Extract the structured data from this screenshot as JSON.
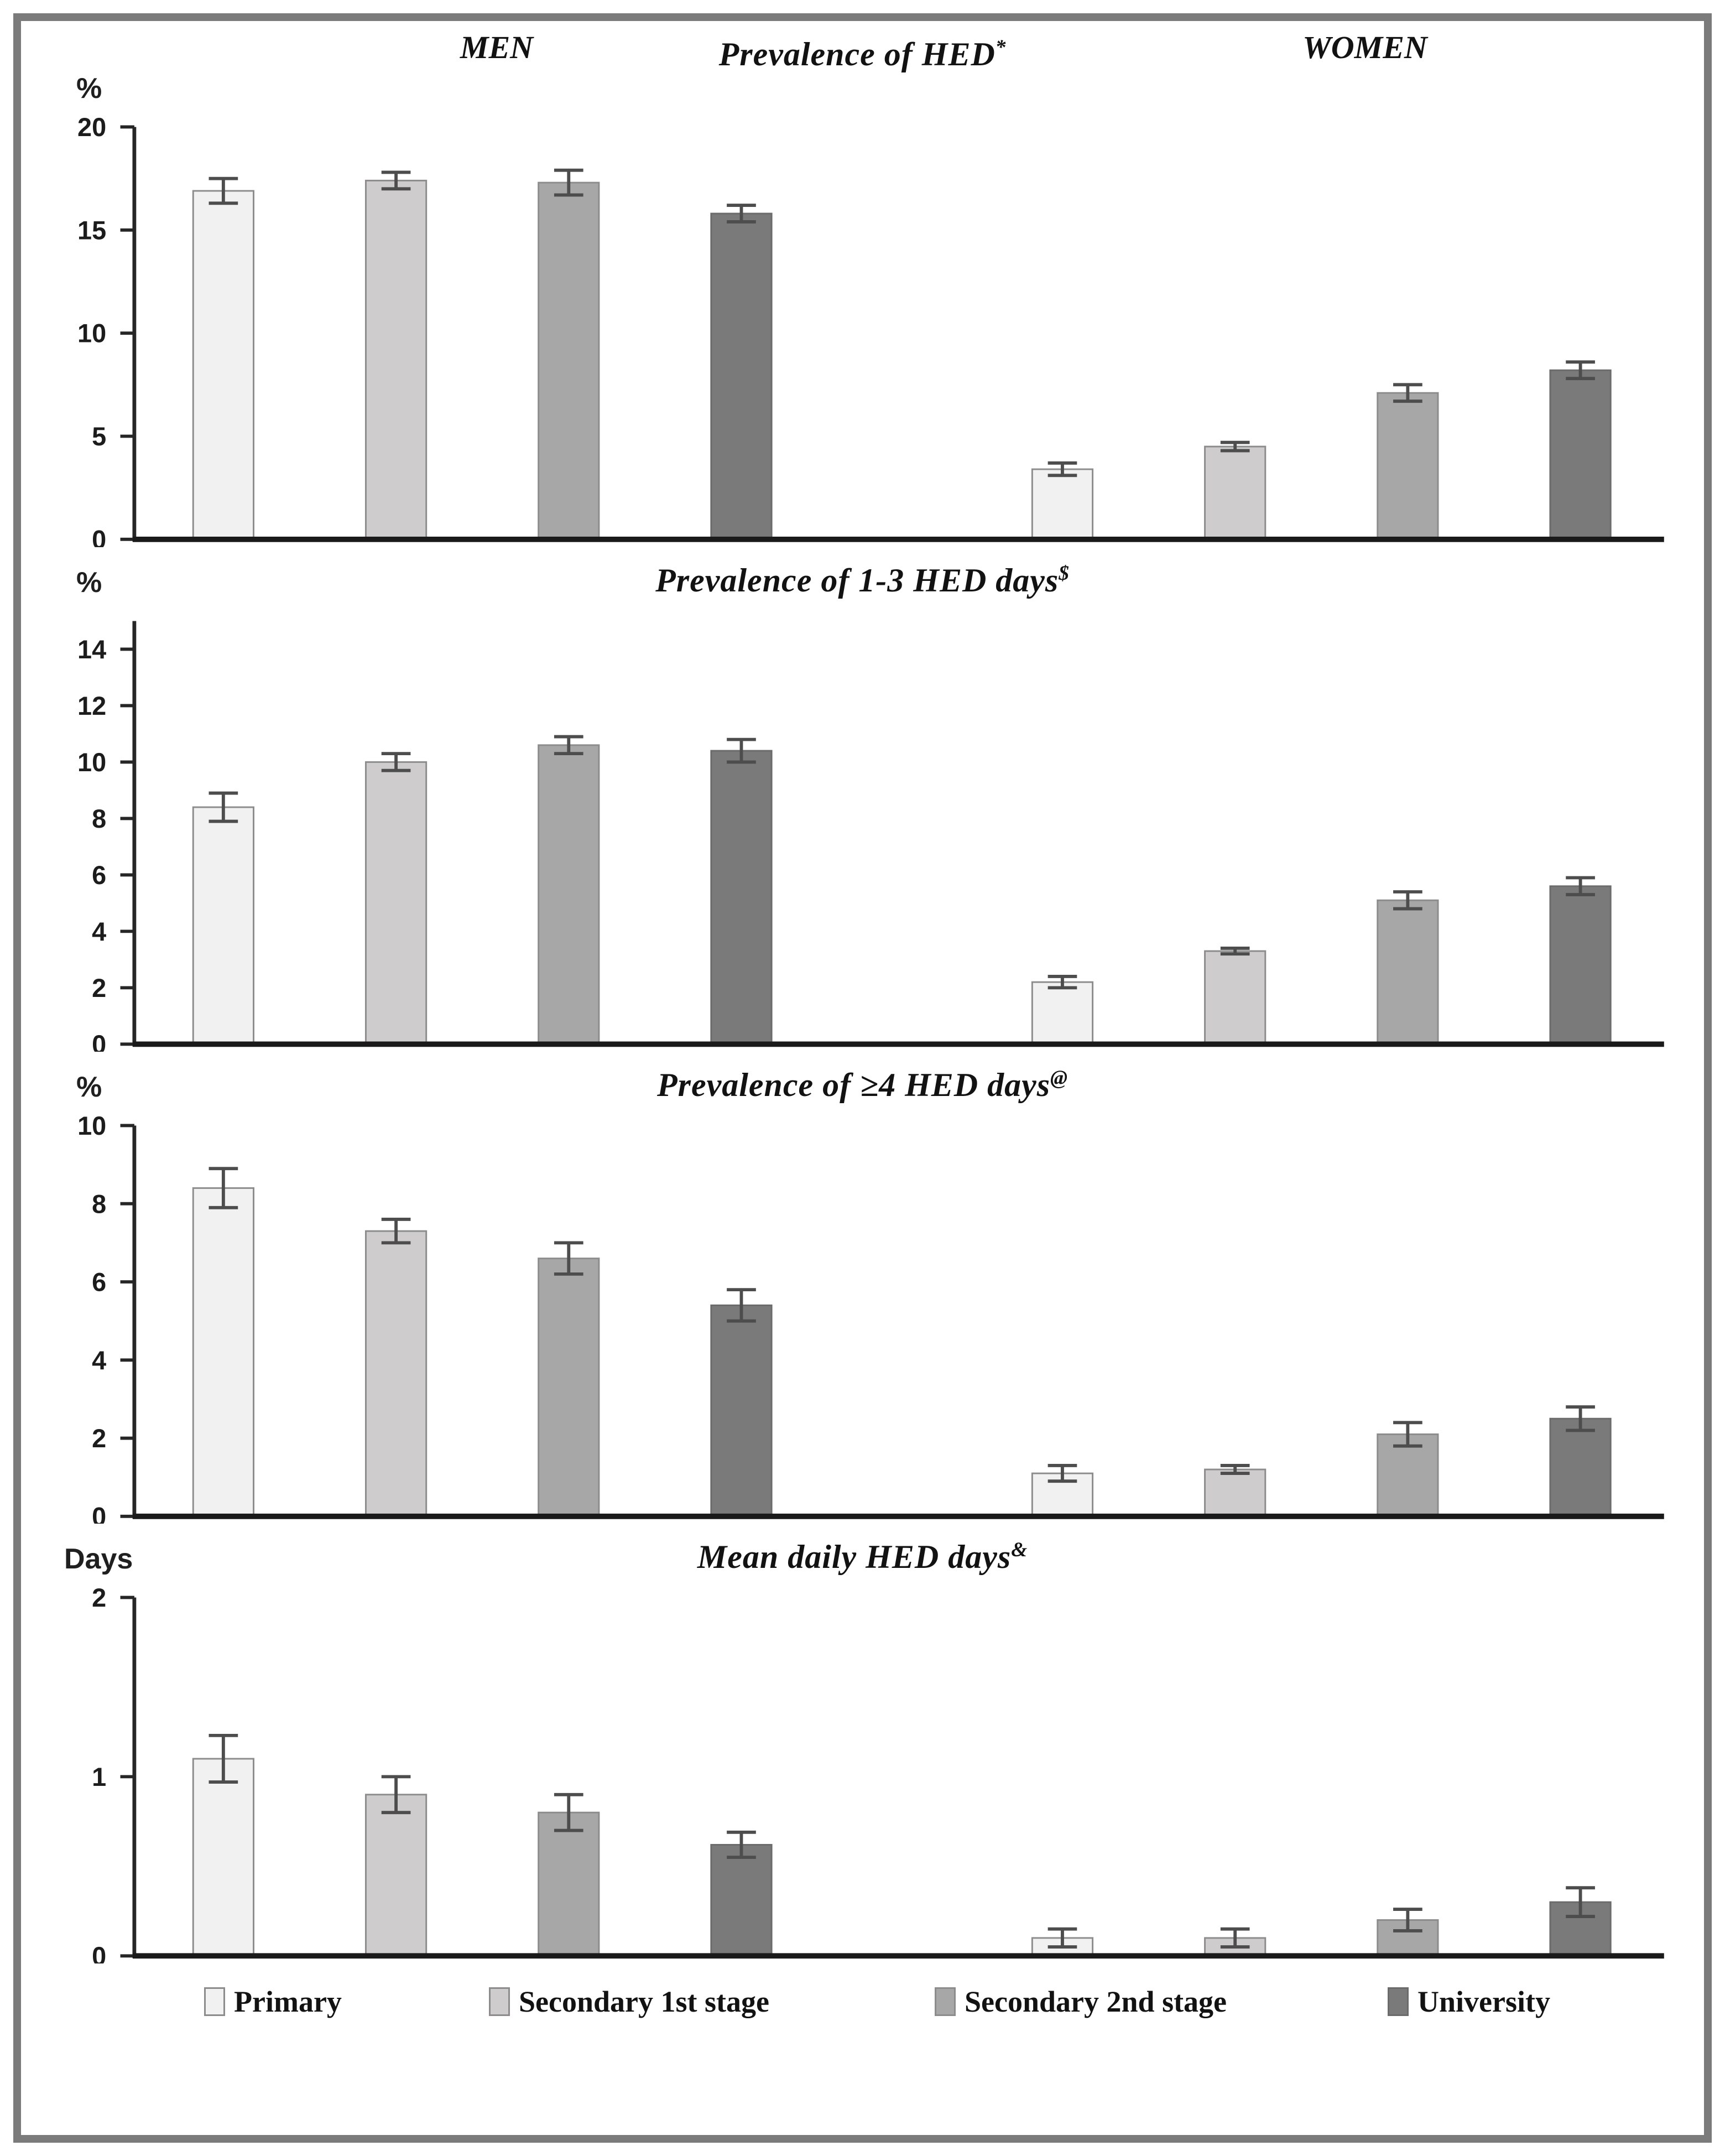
{
  "figure": {
    "men_header": "MEN",
    "women_header": "WOMEN",
    "frame_color": "#7b7b7b",
    "axis_color": "#262626",
    "error_bar_color": "#4d4d4d"
  },
  "legend": {
    "items": [
      {
        "label": "Primary",
        "color": "#f2f1f1",
        "border": "#8c8c8c"
      },
      {
        "label": "Secondary 1st stage",
        "color": "#cecccd",
        "border": "#8c8c8c"
      },
      {
        "label": "Secondary 2nd stage",
        "color": "#a8a7a7",
        "border": "#8c8c8c"
      },
      {
        "label": "University",
        "color": "#7b7a7a",
        "border": "#6b6b6b"
      }
    ]
  },
  "chart_data": [
    {
      "type": "bar",
      "title": {
        "main": "Prevalence of HED",
        "sup": "*"
      },
      "unit": "%",
      "ylabel": "%",
      "ylim": [
        0,
        20
      ],
      "yticks": [
        0,
        5,
        10,
        15,
        20
      ],
      "axis_top": 20,
      "grid": false,
      "categories": [
        "Primary",
        "Secondary 1st stage",
        "Secondary 2nd stage",
        "University"
      ],
      "series": [
        {
          "name": "MEN",
          "values": [
            16.9,
            17.4,
            17.3,
            15.8
          ],
          "errors": [
            0.6,
            0.4,
            0.6,
            0.4
          ]
        },
        {
          "name": "WOMEN",
          "values": [
            3.4,
            4.5,
            7.1,
            8.2
          ],
          "errors": [
            0.3,
            0.2,
            0.4,
            0.4
          ]
        }
      ]
    },
    {
      "type": "bar",
      "title": {
        "main": "Prevalence of 1-3 HED days",
        "sup": "$"
      },
      "unit": "%",
      "ylabel": "%",
      "ylim": [
        0,
        15
      ],
      "yticks": [
        0,
        2,
        4,
        6,
        8,
        10,
        12,
        14
      ],
      "axis_top": 15,
      "grid": false,
      "categories": [
        "Primary",
        "Secondary 1st stage",
        "Secondary 2nd stage",
        "University"
      ],
      "series": [
        {
          "name": "MEN",
          "values": [
            8.4,
            10.0,
            10.6,
            10.4
          ],
          "errors": [
            0.5,
            0.3,
            0.3,
            0.4
          ]
        },
        {
          "name": "WOMEN",
          "values": [
            2.2,
            3.3,
            5.1,
            5.6
          ],
          "errors": [
            0.2,
            0.1,
            0.3,
            0.3
          ]
        }
      ]
    },
    {
      "type": "bar",
      "title": {
        "main": "Prevalence of ≥4 HED days",
        "sup": "@"
      },
      "unit": "%",
      "ylabel": "%",
      "ylim": [
        0,
        10
      ],
      "yticks": [
        0,
        2,
        4,
        6,
        8,
        10
      ],
      "axis_top": 10,
      "grid": false,
      "categories": [
        "Primary",
        "Secondary 1st stage",
        "Secondary 2nd stage",
        "University"
      ],
      "series": [
        {
          "name": "MEN",
          "values": [
            8.4,
            7.3,
            6.6,
            5.4
          ],
          "errors": [
            0.5,
            0.3,
            0.4,
            0.4
          ]
        },
        {
          "name": "WOMEN",
          "values": [
            1.1,
            1.2,
            2.1,
            2.5
          ],
          "errors": [
            0.2,
            0.1,
            0.3,
            0.3
          ]
        }
      ]
    },
    {
      "type": "bar",
      "title": {
        "main": "Mean daily HED days",
        "sup": "&"
      },
      "unit": "Days",
      "ylabel": "Days",
      "ylim": [
        0,
        2
      ],
      "yticks": [
        0,
        1,
        2
      ],
      "axis_top": 2,
      "grid": false,
      "categories": [
        "Primary",
        "Secondary 1st stage",
        "Secondary 2nd stage",
        "University"
      ],
      "series": [
        {
          "name": "MEN",
          "values": [
            1.1,
            0.9,
            0.8,
            0.62
          ],
          "errors": [
            0.13,
            0.1,
            0.1,
            0.07
          ]
        },
        {
          "name": "WOMEN",
          "values": [
            0.1,
            0.1,
            0.2,
            0.3
          ],
          "errors": [
            0.05,
            0.05,
            0.06,
            0.08
          ]
        }
      ]
    }
  ]
}
